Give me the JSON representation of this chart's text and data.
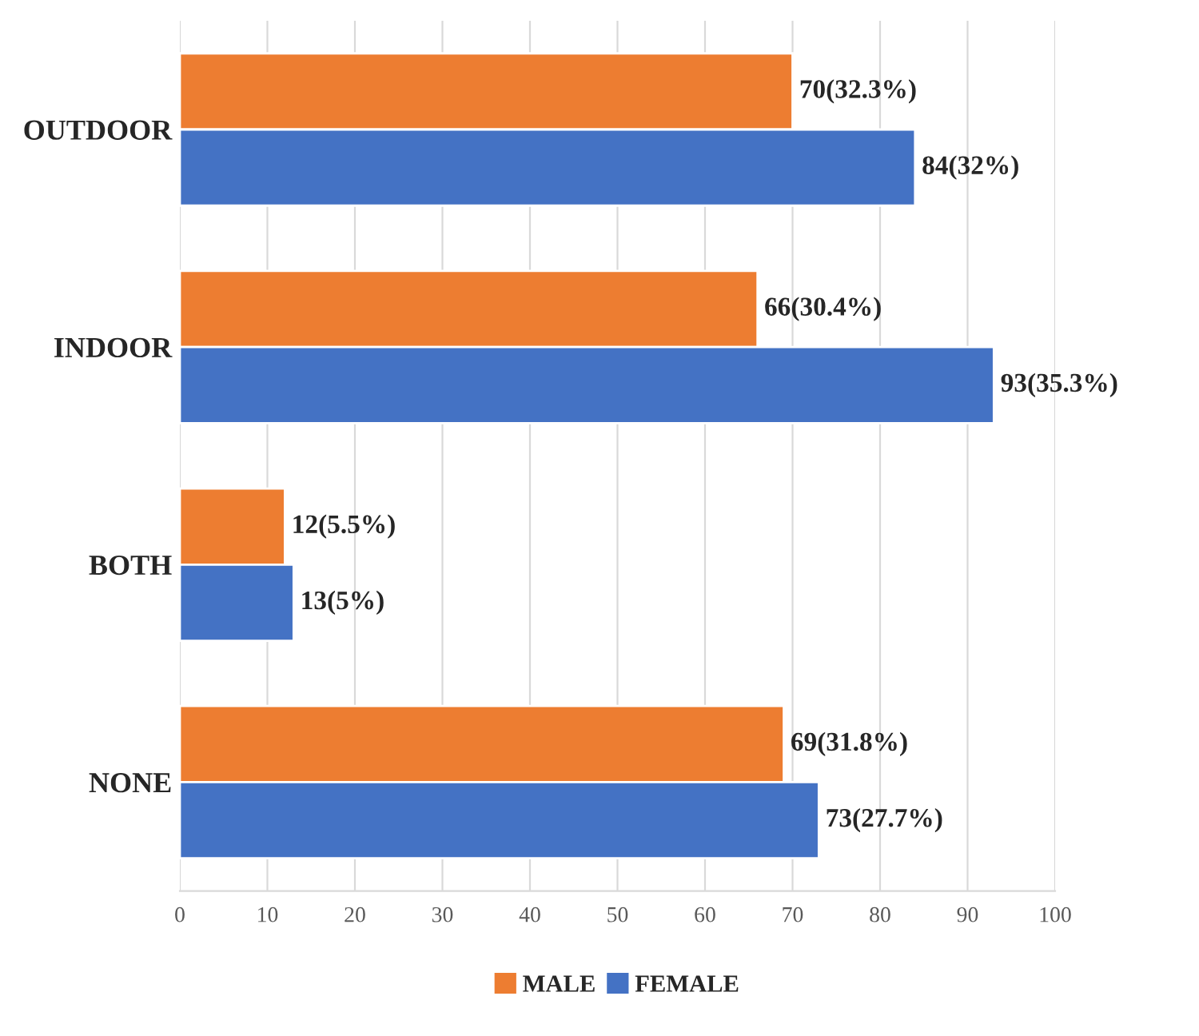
{
  "chart_data": {
    "type": "bar",
    "orientation": "horizontal",
    "categories": [
      "OUTDOOR",
      "INDOOR",
      "BOTH",
      "NONE"
    ],
    "series": [
      {
        "name": "MALE",
        "color": "#ed7d31",
        "values": [
          70,
          66,
          12,
          69
        ],
        "value_labels": [
          "70(32.3%)",
          "66(30.4%)",
          "12(5.5%)",
          "69(31.8%)"
        ]
      },
      {
        "name": "FEMALE",
        "color": "#4472c4",
        "values": [
          84,
          93,
          13,
          73
        ],
        "value_labels": [
          "84(32%)",
          "93(35.3%)",
          "13(5%)",
          "73(27.7%)"
        ]
      }
    ],
    "xlim": [
      0,
      100
    ],
    "xticks": [
      0,
      10,
      20,
      30,
      40,
      50,
      60,
      70,
      80,
      90,
      100
    ],
    "grid": "x",
    "legend": "bottom"
  }
}
